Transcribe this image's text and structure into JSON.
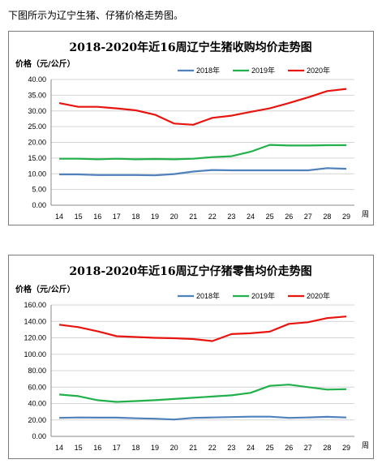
{
  "intro_text": "下图所示为辽宁生猪、仔猪价格走势图。",
  "colors": {
    "2018": "#4f81bd",
    "2019": "#22b04b",
    "2020": "#e8140f"
  },
  "chart_data": [
    {
      "type": "line",
      "title": "2018-2020年近16周辽宁生猪收购均价走势图",
      "ylabel": "价格（元/公斤）",
      "xlabel": "周",
      "x": [
        14,
        15,
        16,
        17,
        18,
        19,
        20,
        21,
        22,
        23,
        24,
        25,
        26,
        27,
        28,
        29
      ],
      "ylim": [
        0,
        40
      ],
      "yticks": [
        "0.00",
        "5.00",
        "10.00",
        "15.00",
        "20.00",
        "25.00",
        "30.00",
        "35.00",
        "40.00"
      ],
      "grid": true,
      "legend_position": "top-right",
      "series": [
        {
          "name": "2018年",
          "values": [
            9.8,
            9.8,
            9.6,
            9.6,
            9.6,
            9.5,
            9.9,
            10.7,
            11.2,
            11.1,
            11.1,
            11.1,
            11.1,
            11.1,
            11.8,
            11.6
          ]
        },
        {
          "name": "2019年",
          "values": [
            14.8,
            14.8,
            14.6,
            14.8,
            14.6,
            14.7,
            14.6,
            14.8,
            15.3,
            15.6,
            17.0,
            19.2,
            19.0,
            19.0,
            19.1,
            19.1
          ]
        },
        {
          "name": "2020年",
          "values": [
            32.5,
            31.3,
            31.3,
            30.8,
            30.2,
            28.8,
            26.0,
            25.6,
            27.8,
            28.5,
            29.7,
            30.8,
            32.5,
            34.3,
            36.3,
            37.0
          ]
        }
      ]
    },
    {
      "type": "line",
      "title": "2018-2020年近16周辽宁仔猪零售均价走势图",
      "ylabel": "价格（元/公斤）",
      "xlabel": "周",
      "x": [
        14,
        15,
        16,
        17,
        18,
        19,
        20,
        21,
        22,
        23,
        24,
        25,
        26,
        27,
        28,
        29
      ],
      "ylim": [
        0,
        160
      ],
      "yticks": [
        "0.00",
        "20.00",
        "40.00",
        "60.00",
        "80.00",
        "100.00",
        "120.00",
        "140.00",
        "160.00"
      ],
      "grid": true,
      "legend_position": "top-right",
      "series": [
        {
          "name": "2018年",
          "values": [
            22.5,
            23.0,
            22.8,
            22.8,
            22.0,
            21.5,
            20.5,
            22.5,
            23.0,
            23.5,
            24.0,
            24.0,
            22.5,
            23.0,
            23.8,
            23.0
          ]
        },
        {
          "name": "2019年",
          "values": [
            51.0,
            49.0,
            44.0,
            42.0,
            43.0,
            44.0,
            45.5,
            47.0,
            48.5,
            50.0,
            53.0,
            61.5,
            63.0,
            60.0,
            57.0,
            57.5
          ]
        },
        {
          "name": "2020年",
          "values": [
            136.0,
            133.0,
            128.0,
            122.0,
            121.0,
            120.0,
            119.5,
            118.5,
            116.0,
            124.5,
            125.5,
            127.5,
            137.0,
            139.0,
            144.0,
            146.0
          ]
        }
      ]
    }
  ]
}
